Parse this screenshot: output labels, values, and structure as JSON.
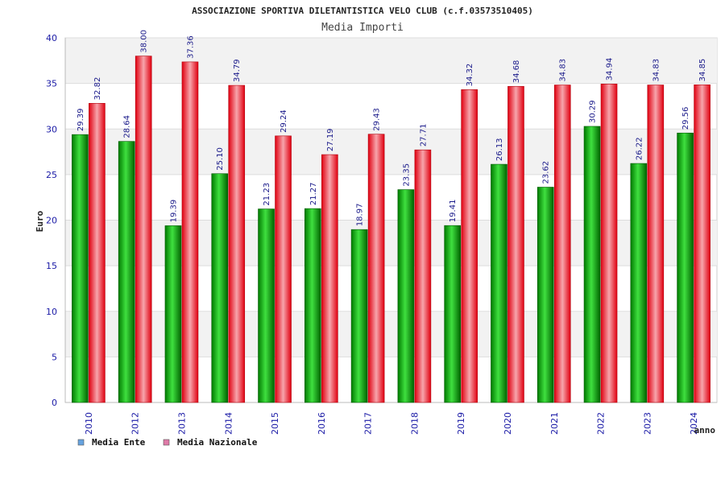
{
  "chart_data": {
    "type": "bar",
    "title": "ASSOCIAZIONE SPORTIVA DILETANTISTICA VELO CLUB (c.f.03573510405)",
    "subtitle": "Media Importi",
    "xlabel": "anno",
    "ylabel": "Euro",
    "ylim": [
      0,
      40
    ],
    "yticks": [
      0,
      5,
      10,
      15,
      20,
      25,
      30,
      35,
      40
    ],
    "ytick_labels": [
      "0",
      "5",
      "10",
      "15",
      "20",
      "25",
      "30",
      "35",
      "40"
    ],
    "grid": true,
    "legend_position": "bottom-left",
    "categories": [
      "2010",
      "2012",
      "2013",
      "2014",
      "2015",
      "2016",
      "2017",
      "2018",
      "2019",
      "2020",
      "2021",
      "2022",
      "2023",
      "2024"
    ],
    "series": [
      {
        "name": "Media Ente",
        "legend_color": "#66a3e0",
        "bar_color": "#00b000",
        "values": [
          29.39,
          28.64,
          19.39,
          25.1,
          21.23,
          21.27,
          18.97,
          23.35,
          19.41,
          26.13,
          23.62,
          30.29,
          26.22,
          29.56
        ],
        "labels": [
          "29.39",
          "28.64",
          "19.39",
          "25.10",
          "21.23",
          "21.27",
          "18.97",
          "23.35",
          "19.41",
          "26.13",
          "23.62",
          "30.29",
          "26.22",
          "29.56"
        ]
      },
      {
        "name": "Media Nazionale",
        "legend_color": "#e07aa8",
        "bar_color": "#e8162a",
        "values": [
          32.82,
          38.0,
          37.36,
          34.79,
          29.24,
          27.19,
          29.43,
          27.71,
          34.32,
          34.68,
          34.83,
          34.94,
          34.83,
          34.85
        ],
        "labels": [
          "32.82",
          "38.00",
          "37.36",
          "34.79",
          "29.24",
          "27.19",
          "29.43",
          "27.71",
          "34.32",
          "34.68",
          "34.83",
          "34.94",
          "34.83",
          "34.85"
        ]
      }
    ]
  }
}
